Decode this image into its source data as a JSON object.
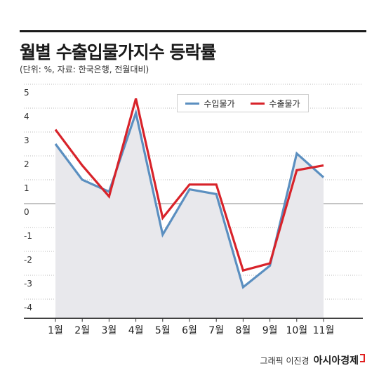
{
  "title": "월별 수출입물가지수 등락률",
  "subtitle": "(단위: %, 자료: 한국은행, 전월대비)",
  "credit": {
    "text": "그래픽 이진경",
    "brand": "아시아경제"
  },
  "colors": {
    "import": "#5b8fc0",
    "export": "#d8232a",
    "fill": "#e8e8ec",
    "grid": "#bbbbbb",
    "zero": "#888888",
    "axis": "#333333"
  },
  "chart_data": {
    "type": "line",
    "categories": [
      "1월",
      "2월",
      "3월",
      "4월",
      "5월",
      "6월",
      "7월",
      "8월",
      "9월",
      "10월",
      "11월"
    ],
    "y_ticks": [
      "5",
      "4",
      "3",
      "2",
      "1",
      "0",
      "-1",
      "-2",
      "-3",
      "-4"
    ],
    "ylim": [
      -4.8,
      5
    ],
    "grid": true,
    "legend_position": "top-right",
    "series": [
      {
        "name": "수입물가",
        "color": "#5b8fc0",
        "values": [
          2.5,
          1.0,
          0.5,
          3.8,
          -1.3,
          0.6,
          0.4,
          -3.5,
          -2.6,
          2.1,
          1.1
        ]
      },
      {
        "name": "수출물가",
        "color": "#d8232a",
        "values": [
          3.1,
          1.6,
          0.3,
          4.4,
          -0.6,
          0.8,
          0.8,
          -2.8,
          -2.5,
          1.4,
          1.6
        ]
      }
    ]
  }
}
